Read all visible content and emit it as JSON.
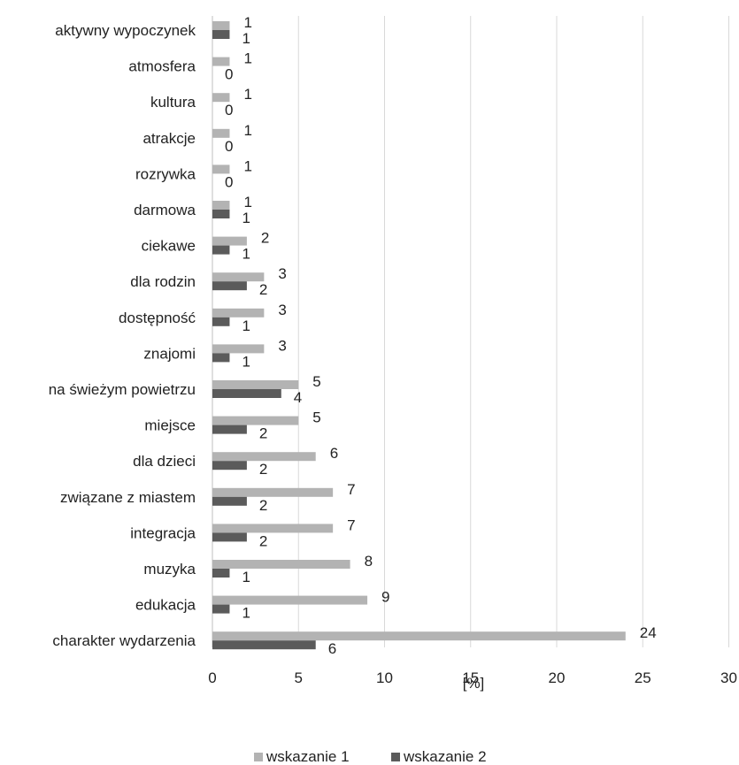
{
  "chart_data": {
    "type": "bar",
    "orientation": "horizontal",
    "title": "",
    "xlabel": "[%]",
    "ylabel": "",
    "xlim": [
      0,
      30
    ],
    "xticks": [
      0,
      5,
      10,
      15,
      20,
      25,
      30
    ],
    "grid": "vertical",
    "legend_position": "bottom",
    "categories": [
      "aktywny wypoczynek",
      "atmosfera",
      "kultura",
      "atrakcje",
      "rozrywka",
      "darmowa",
      "ciekawe",
      "dla rodzin",
      "dostępność",
      "znajomi",
      "na świeżym powietrzu",
      "miejsce",
      "dla dzieci",
      "związane z miastem",
      "integracja",
      "muzyka",
      "edukacja",
      "charakter wydarzenia"
    ],
    "series": [
      {
        "name": "wskazanie 1",
        "color": "#b3b3b3",
        "values": [
          1,
          1,
          1,
          1,
          1,
          1,
          2,
          3,
          3,
          3,
          5,
          5,
          6,
          7,
          7,
          8,
          9,
          24
        ]
      },
      {
        "name": "wskazanie 2",
        "color": "#5b5b5b",
        "values": [
          1,
          0,
          0,
          0,
          0,
          1,
          1,
          2,
          1,
          1,
          4,
          2,
          2,
          2,
          2,
          1,
          1,
          6
        ]
      }
    ]
  }
}
